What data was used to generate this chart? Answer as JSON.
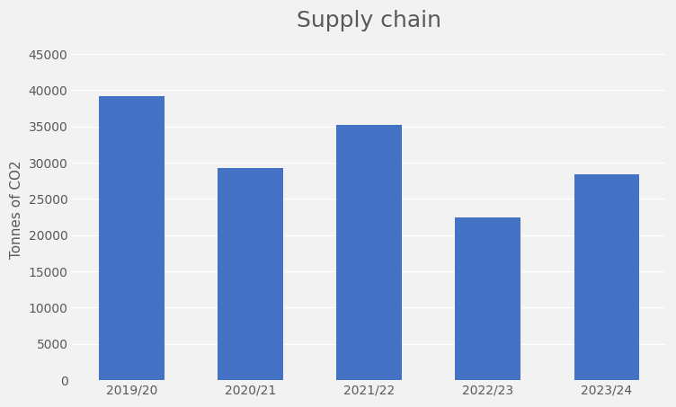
{
  "title": "Supply chain",
  "categories": [
    "2019/20",
    "2020/21",
    "2021/22",
    "2022/23",
    "2023/24"
  ],
  "values": [
    39200,
    29300,
    35200,
    22500,
    28400
  ],
  "bar_color": "#4472C4",
  "ylabel": "Tonnes of CO2",
  "ylim": [
    0,
    47000
  ],
  "yticks": [
    0,
    5000,
    10000,
    15000,
    20000,
    25000,
    30000,
    35000,
    40000,
    45000
  ],
  "background_color": "#f2f2f2",
  "plot_bg_color": "#f2f2f2",
  "title_fontsize": 18,
  "axis_label_fontsize": 11,
  "tick_fontsize": 10,
  "grid_color": "#ffffff",
  "bar_width": 0.55,
  "title_color": "#595959",
  "tick_color": "#595959",
  "ylabel_color": "#595959"
}
